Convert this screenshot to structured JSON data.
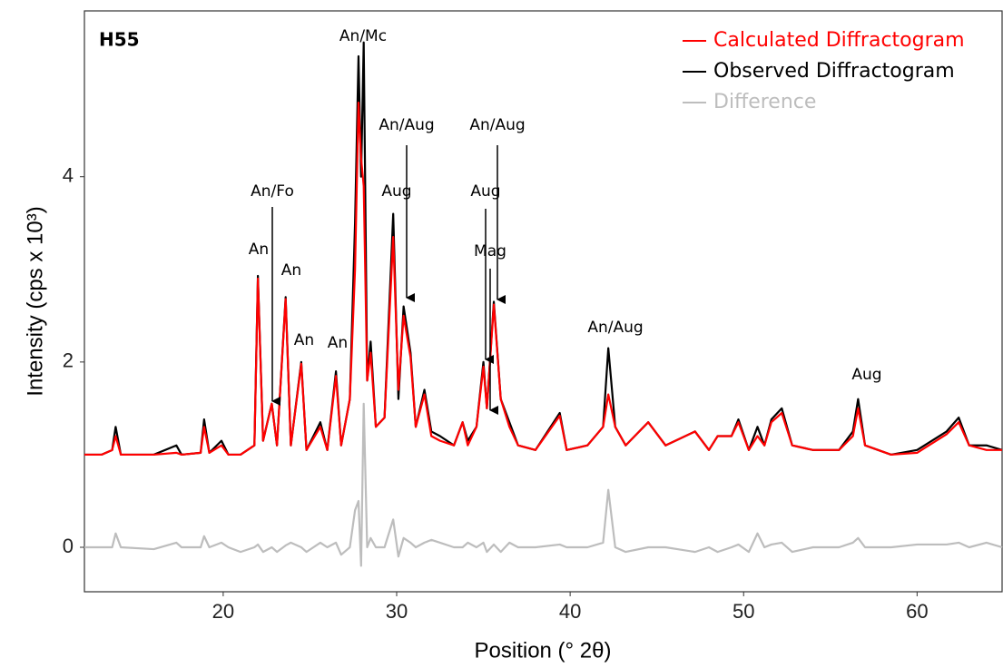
{
  "chart_data": {
    "type": "line",
    "label": "H55",
    "x_label": "Position (° 2θ)",
    "y_label": "Intensity (cps x 10³)",
    "xlim": [
      12,
      64.9
    ],
    "xticks": [
      20,
      30,
      40,
      50,
      60
    ],
    "ylim": [
      -0.48,
      5.79
    ],
    "yticks": [
      0,
      2,
      4
    ],
    "grid": false,
    "legend": "top-right",
    "x": [
      12.0,
      13.0,
      13.6,
      13.8,
      14.1,
      16.0,
      17.3,
      17.6,
      18.7,
      18.9,
      19.2,
      19.9,
      20.3,
      21.0,
      21.8,
      22.0,
      22.3,
      22.8,
      23.1,
      23.6,
      23.9,
      24.5,
      24.8,
      25.6,
      26.0,
      26.5,
      26.8,
      27.3,
      27.6,
      27.8,
      27.95,
      28.1,
      28.3,
      28.5,
      28.8,
      29.3,
      29.8,
      30.1,
      30.4,
      30.8,
      31.1,
      31.6,
      32.0,
      32.5,
      33.3,
      33.8,
      34.1,
      34.6,
      35.0,
      35.2,
      35.6,
      36.0,
      36.5,
      37.0,
      38.0,
      39.4,
      39.8,
      41.0,
      41.9,
      42.2,
      42.6,
      43.2,
      44.5,
      45.5,
      47.2,
      48.0,
      48.5,
      49.3,
      49.7,
      50.3,
      50.8,
      51.2,
      51.6,
      52.2,
      52.8,
      54.0,
      55.5,
      56.3,
      56.6,
      57.0,
      58.5,
      60.0,
      61.7,
      62.4,
      63.0,
      64.0,
      64.9
    ],
    "series": [
      {
        "name": "Difference",
        "color": "#bdbdbd",
        "values": [
          0,
          0,
          0,
          0.15,
          0,
          -0.02,
          0.05,
          0,
          0,
          0.12,
          0,
          0.05,
          0,
          -0.05,
          0,
          0.03,
          -0.05,
          0,
          -0.05,
          0.02,
          0.05,
          0,
          -0.05,
          0.05,
          0,
          0.05,
          -0.08,
          0,
          0.4,
          0.5,
          -0.2,
          1.55,
          0,
          0.1,
          0,
          0,
          0.3,
          -0.1,
          0.1,
          0.05,
          0,
          0.05,
          0.08,
          0.05,
          0,
          0,
          0.05,
          0,
          0.05,
          -0.05,
          0.03,
          -0.05,
          0.05,
          0,
          0,
          0.03,
          0,
          0,
          0.05,
          0.62,
          0,
          -0.05,
          0,
          0,
          -0.05,
          0,
          -0.05,
          0,
          0.03,
          -0.05,
          0.15,
          0,
          0.03,
          0.05,
          -0.05,
          0,
          0,
          0.05,
          0.1,
          0,
          0,
          0.03,
          0.03,
          0.05,
          0,
          0.05,
          0
        ]
      },
      {
        "name": "Observed Diffractogram",
        "color": "#000000",
        "values": [
          1.0,
          1.0,
          1.05,
          1.3,
          1.0,
          1.0,
          1.1,
          1.0,
          1.02,
          1.38,
          1.02,
          1.15,
          1.0,
          1.0,
          1.1,
          2.93,
          1.15,
          1.55,
          1.1,
          2.7,
          1.1,
          2.0,
          1.05,
          1.35,
          1.05,
          1.9,
          1.1,
          1.6,
          3.5,
          5.3,
          4.0,
          5.45,
          1.8,
          2.22,
          1.3,
          1.4,
          3.6,
          1.6,
          2.6,
          2.1,
          1.3,
          1.7,
          1.25,
          1.2,
          1.1,
          1.35,
          1.15,
          1.3,
          2.0,
          1.5,
          2.65,
          1.6,
          1.35,
          1.1,
          1.05,
          1.45,
          1.05,
          1.1,
          1.3,
          2.15,
          1.3,
          1.1,
          1.35,
          1.1,
          1.25,
          1.05,
          1.2,
          1.2,
          1.38,
          1.05,
          1.3,
          1.1,
          1.38,
          1.5,
          1.1,
          1.05,
          1.05,
          1.25,
          1.6,
          1.1,
          1.0,
          1.05,
          1.25,
          1.4,
          1.1,
          1.1,
          1.05
        ]
      },
      {
        "name": "Calculated Diffractogram",
        "color": "#ff0000",
        "values": [
          1.0,
          1.0,
          1.05,
          1.2,
          1.0,
          1.0,
          1.02,
          1.0,
          1.02,
          1.3,
          1.02,
          1.1,
          1.0,
          1.0,
          1.1,
          2.9,
          1.15,
          1.55,
          1.1,
          2.68,
          1.1,
          1.98,
          1.05,
          1.3,
          1.05,
          1.85,
          1.1,
          1.6,
          3.0,
          4.8,
          4.2,
          3.9,
          1.8,
          2.1,
          1.3,
          1.4,
          3.35,
          1.7,
          2.5,
          2.05,
          1.3,
          1.65,
          1.2,
          1.15,
          1.1,
          1.35,
          1.1,
          1.3,
          1.95,
          1.5,
          2.62,
          1.6,
          1.3,
          1.1,
          1.05,
          1.42,
          1.05,
          1.1,
          1.3,
          1.65,
          1.3,
          1.1,
          1.35,
          1.1,
          1.25,
          1.05,
          1.2,
          1.2,
          1.35,
          1.05,
          1.2,
          1.1,
          1.35,
          1.45,
          1.1,
          1.05,
          1.05,
          1.2,
          1.5,
          1.1,
          1.0,
          1.02,
          1.22,
          1.35,
          1.1,
          1.05,
          1.05
        ]
      }
    ],
    "annotations": [
      "An/Mc",
      "An/Fo",
      "An",
      "An",
      "An",
      "An",
      "An/Aug",
      "Aug",
      "An/Aug",
      "Aug",
      "Mag",
      "An/Aug",
      "Aug"
    ]
  }
}
